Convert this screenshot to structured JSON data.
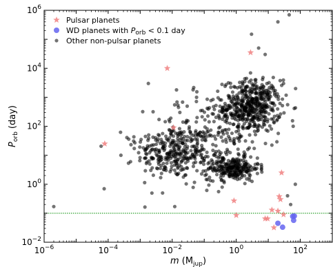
{
  "chart_data": {
    "type": "scatter",
    "title": "",
    "x_scale": "log",
    "y_scale": "log",
    "xlim": [
      1e-06,
      1000
    ],
    "ylim": [
      0.01,
      1000000
    ],
    "x_tick_labels": [
      {
        "value": 1e-06,
        "base": "10",
        "exp": "−6"
      },
      {
        "value": 0.0001,
        "base": "10",
        "exp": "−4"
      },
      {
        "value": 0.01,
        "base": "10",
        "exp": "−2"
      },
      {
        "value": 1,
        "base": "10",
        "exp": "0"
      },
      {
        "value": 100,
        "base": "10",
        "exp": "2"
      }
    ],
    "y_tick_labels": [
      {
        "value": 0.01,
        "base": "10",
        "exp": "−2"
      },
      {
        "value": 1,
        "base": "10",
        "exp": "0"
      },
      {
        "value": 100,
        "base": "10",
        "exp": "2"
      },
      {
        "value": 10000,
        "base": "10",
        "exp": "4"
      },
      {
        "value": 1000000,
        "base": "10",
        "exp": "6"
      }
    ],
    "xlabel": {
      "main": "m",
      "open": " (M",
      "sub": "jup",
      "close": ")"
    },
    "ylabel": {
      "main": "P",
      "sub": "orb",
      "rest": " (day)"
    },
    "reference_line": {
      "y": 0.1,
      "color": "#2ca02c",
      "style": "dotted"
    },
    "legend": {
      "placement": "top-left",
      "entries": [
        {
          "text": "Pulsar planets",
          "marker": "star",
          "color": "#f08080"
        },
        {
          "text_pre": "WD planets with ",
          "text_math": "P",
          "text_sub": "orb",
          "text_post": " < 0.1 day",
          "marker": "circle",
          "color": "#6464f0"
        },
        {
          "text": "Other non-pulsar planets",
          "marker": "circle",
          "color": "#000000"
        }
      ]
    },
    "series": [
      {
        "name": "Pulsar planets",
        "marker": "star",
        "color": "#f08080",
        "points": [
          {
            "x": 7.8e-05,
            "y": 25
          },
          {
            "x": 0.007,
            "y": 10000
          },
          {
            "x": 0.011,
            "y": 90
          },
          {
            "x": 0.85,
            "y": 0.27
          },
          {
            "x": 1.0,
            "y": 0.085
          },
          {
            "x": 2.8,
            "y": 35000
          },
          {
            "x": 8.0,
            "y": 0.065
          },
          {
            "x": 9.5,
            "y": 0.065
          },
          {
            "x": 13,
            "y": 0.13
          },
          {
            "x": 15,
            "y": 0.032
          },
          {
            "x": 20,
            "y": 0.12
          },
          {
            "x": 22,
            "y": 0.38
          },
          {
            "x": 24,
            "y": 0.3
          },
          {
            "x": 26,
            "y": 2.5
          },
          {
            "x": 30,
            "y": 0.09
          }
        ]
      },
      {
        "name": "WD planets with Porb < 0.1 day",
        "marker": "circle",
        "color": "#6464f0",
        "points": [
          {
            "x": 20,
            "y": 0.045
          },
          {
            "x": 28,
            "y": 0.033
          },
          {
            "x": 58,
            "y": 0.078
          },
          {
            "x": 62,
            "y": 0.057
          },
          {
            "x": 65,
            "y": 0.08
          }
        ]
      },
      {
        "name": "Other non-pulsar planets",
        "marker": "circle",
        "color": "#000000",
        "clusters": [
          {
            "x_log_center": -2.0,
            "x_log_spread": 0.55,
            "y_log_center": 1.1,
            "y_log_spread": 0.45,
            "count": 260
          },
          {
            "x_log_center": 0.5,
            "x_log_spread": 0.45,
            "y_log_center": 2.7,
            "y_log_spread": 0.45,
            "count": 480
          },
          {
            "x_log_center": -0.1,
            "x_log_spread": 0.4,
            "y_log_center": 0.55,
            "y_log_spread": 0.2,
            "count": 220
          },
          {
            "x_log_center": -0.8,
            "x_log_spread": 0.9,
            "y_log_center": 1.6,
            "y_log_spread": 0.8,
            "count": 260
          }
        ],
        "outliers": [
          {
            "x": 2e-06,
            "y": 0.17
          },
          {
            "x": 7.5e-05,
            "y": 0.7
          },
          {
            "x": 0.00025,
            "y": 10
          },
          {
            "x": 0.0005,
            "y": 6
          },
          {
            "x": 0.002,
            "y": 5
          },
          {
            "x": 0.003,
            "y": 40
          },
          {
            "x": 0.0015,
            "y": 8
          },
          {
            "x": 0.0018,
            "y": 3000
          },
          {
            "x": 0.012,
            "y": 0.17
          },
          {
            "x": 0.005,
            "y": 0.5
          },
          {
            "x": 3,
            "y": 150000
          },
          {
            "x": 5,
            "y": 50000
          },
          {
            "x": 20,
            "y": 400000
          },
          {
            "x": 45,
            "y": 700000
          },
          {
            "x": 8,
            "y": 30000
          },
          {
            "x": 30,
            "y": 3000
          },
          {
            "x": 60,
            "y": 100
          },
          {
            "x": 70,
            "y": 1
          },
          {
            "x": 40,
            "y": 0.4
          },
          {
            "x": 50,
            "y": 0.2
          }
        ]
      }
    ]
  }
}
